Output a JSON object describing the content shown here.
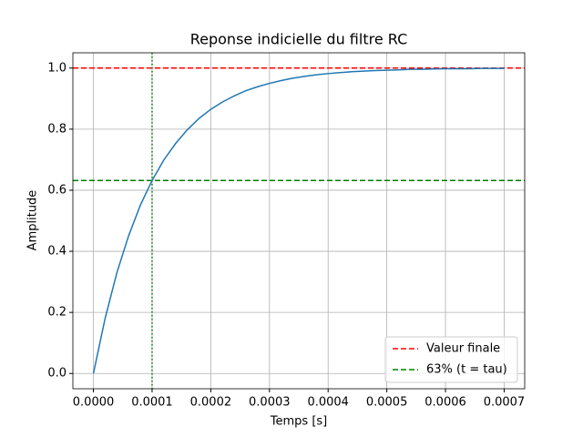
{
  "chart_data": {
    "type": "line",
    "title": "Reponse indicielle du filtre RC",
    "x_label": "Temps [s]",
    "y_label": "Amplitude",
    "x": [
      0,
      2e-05,
      4e-05,
      6e-05,
      8e-05,
      0.0001,
      0.00012,
      0.00014,
      0.00016,
      0.00018,
      0.0002,
      0.00022,
      0.00024,
      0.00026,
      0.00028,
      0.0003,
      0.00032,
      0.00034,
      0.00036,
      0.00038,
      0.0004,
      0.00042,
      0.00044,
      0.00046,
      0.00048,
      0.0005,
      0.00052,
      0.00054,
      0.00056,
      0.00058,
      0.0006,
      0.00062,
      0.00064,
      0.00066,
      0.00068,
      0.0007
    ],
    "series": [
      {
        "color": "#1f77b4",
        "values": [
          0,
          0.181,
          0.33,
          0.451,
          0.551,
          0.632,
          0.699,
          0.753,
          0.798,
          0.835,
          0.865,
          0.889,
          0.909,
          0.926,
          0.939,
          0.95,
          0.959,
          0.967,
          0.973,
          0.978,
          0.982,
          0.985,
          0.988,
          0.99,
          0.992,
          0.993,
          0.994,
          0.996,
          0.996,
          0.997,
          0.998,
          0.998,
          0.998,
          0.999,
          0.999,
          0.999
        ]
      }
    ],
    "reference_lines": [
      {
        "name": "Valeur finale",
        "color": "#ff0000",
        "y": 1,
        "style": "dashed"
      },
      {
        "name": "63% (t = tau)",
        "color": "#008000",
        "y": 0.632,
        "style": "dashed"
      }
    ],
    "vertical_line": {
      "x": 0.0001,
      "color": "#008000",
      "style": "dotted"
    },
    "xlim": [
      -3.5e-05,
      0.000735
    ],
    "ylim": [
      -0.05,
      1.05
    ],
    "xticks": [
      {
        "value": 0,
        "label": "0.0000"
      },
      {
        "value": 0.0001,
        "label": "0.0001"
      },
      {
        "value": 0.0002,
        "label": "0.0002"
      },
      {
        "value": 0.0003,
        "label": "0.0003"
      },
      {
        "value": 0.0004,
        "label": "0.0004"
      },
      {
        "value": 0.0005,
        "label": "0.0005"
      },
      {
        "value": 0.0006,
        "label": "0.0006"
      },
      {
        "value": 0.0007,
        "label": "0.0007"
      }
    ],
    "yticks": [
      {
        "value": 0,
        "label": "0.0"
      },
      0.2,
      0.4,
      0.6,
      0.8,
      {
        "value": 1,
        "label": "1.0"
      }
    ],
    "grid": true,
    "legend": "lower right"
  }
}
